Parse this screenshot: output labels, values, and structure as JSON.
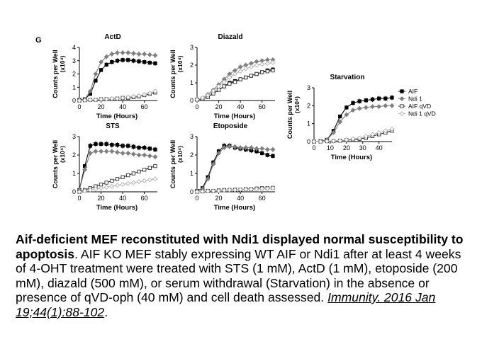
{
  "panel_letter": "G",
  "caption": {
    "bold": "Aif-deficient MEF reconstituted with Ndi1 displayed normal susceptibility to apoptosis",
    "body": ". AIF KO MEF stably expressing WT AIF or Ndi1 after at least 4 weeks of 4-OHT treatment were treated with STS (1 mM), ActD (1 mM), etoposide (200 mM), diazald (500 mM), or serum withdrawal (Starvation) in the absence or presence of qVD-oph (40 mM) and cell death assessed. ",
    "citation": "Immunity. 2016 Jan 19;44(1):88-102",
    "end": "."
  },
  "colors": {
    "AIF": "#000000",
    "Ndi 1": "#7f7f7f",
    "AIF qVD": "#333333",
    "Ndi 1 qVD": "#b0b0b0"
  },
  "chart_data": [
    {
      "type": "line",
      "title": "ActD",
      "xlabel": "Time (Hours)",
      "ylabel": "Counts per Well",
      "yunit": "(x10⁴)",
      "xlim": [
        0,
        72
      ],
      "ylim": [
        0,
        4
      ],
      "xticks": [
        0,
        20,
        40,
        60
      ],
      "yticks": [
        0,
        1,
        2,
        3,
        4
      ],
      "x": [
        0,
        5,
        10,
        15,
        20,
        25,
        30,
        35,
        40,
        45,
        50,
        55,
        60,
        65,
        70
      ],
      "series": [
        {
          "name": "AIF",
          "values": [
            0.05,
            0.1,
            0.5,
            1.5,
            2.3,
            2.7,
            2.9,
            3.0,
            3.05,
            3.05,
            3.0,
            2.95,
            2.9,
            2.85,
            2.8
          ]
        },
        {
          "name": "Ndi 1",
          "values": [
            0.05,
            0.1,
            0.7,
            2.0,
            2.9,
            3.3,
            3.5,
            3.6,
            3.6,
            3.6,
            3.55,
            3.5,
            3.5,
            3.45,
            3.4
          ]
        },
        {
          "name": "AIF qVD",
          "values": [
            0,
            0.02,
            0.05,
            0.05,
            0.1,
            0.1,
            0.1,
            0.15,
            0.2,
            0.2,
            0.25,
            0.3,
            0.4,
            0.5,
            0.6
          ]
        },
        {
          "name": "Ndi 1 qVD",
          "values": [
            0,
            0.02,
            0.05,
            0.05,
            0.1,
            0.1,
            0.15,
            0.15,
            0.2,
            0.25,
            0.3,
            0.35,
            0.45,
            0.55,
            0.7
          ]
        }
      ]
    },
    {
      "type": "line",
      "title": "Diazald",
      "xlabel": "Time (Hours)",
      "ylabel": "Counts per Well",
      "yunit": "(x10⁴)",
      "xlim": [
        0,
        72
      ],
      "ylim": [
        0,
        3
      ],
      "xticks": [
        0,
        20,
        40,
        60
      ],
      "yticks": [
        0,
        1,
        2,
        3
      ],
      "x": [
        0,
        5,
        10,
        15,
        20,
        25,
        30,
        35,
        40,
        45,
        50,
        55,
        60,
        65,
        70
      ],
      "series": [
        {
          "name": "AIF",
          "values": [
            0.05,
            0.1,
            0.2,
            0.4,
            0.6,
            0.8,
            1.0,
            1.1,
            1.2,
            1.3,
            1.4,
            1.5,
            1.6,
            1.7,
            1.75
          ]
        },
        {
          "name": "Ndi 1",
          "values": [
            0.05,
            0.15,
            0.35,
            0.6,
            0.9,
            1.2,
            1.5,
            1.7,
            1.9,
            2.0,
            2.1,
            2.2,
            2.25,
            2.3,
            2.3
          ]
        },
        {
          "name": "AIF qVD",
          "values": [
            0.05,
            0.1,
            0.2,
            0.4,
            0.6,
            0.8,
            0.95,
            1.05,
            1.2,
            1.3,
            1.4,
            1.5,
            1.6,
            1.65,
            1.7
          ]
        },
        {
          "name": "Ndi 1 qVD",
          "values": [
            0.05,
            0.15,
            0.3,
            0.55,
            0.8,
            1.05,
            1.3,
            1.5,
            1.65,
            1.8,
            1.9,
            2.0,
            2.05,
            2.1,
            2.15
          ]
        }
      ]
    },
    {
      "type": "line",
      "title": "STS",
      "xlabel": "Time (Hours)",
      "ylabel": "Counts per Well",
      "yunit": "(x10⁴)",
      "xlim": [
        0,
        72
      ],
      "ylim": [
        0,
        3
      ],
      "xticks": [
        0,
        20,
        40,
        60
      ],
      "yticks": [
        0,
        1,
        2,
        3
      ],
      "x": [
        0,
        5,
        10,
        15,
        20,
        25,
        30,
        35,
        40,
        45,
        50,
        55,
        60,
        65,
        70
      ],
      "series": [
        {
          "name": "AIF",
          "values": [
            0.1,
            1.4,
            2.5,
            2.6,
            2.6,
            2.6,
            2.55,
            2.55,
            2.5,
            2.5,
            2.45,
            2.4,
            2.4,
            2.35,
            2.3
          ]
        },
        {
          "name": "Ndi 1",
          "values": [
            0.1,
            1.2,
            2.1,
            2.2,
            2.2,
            2.2,
            2.2,
            2.15,
            2.1,
            2.1,
            2.05,
            2.0,
            2.0,
            1.95,
            1.9
          ]
        },
        {
          "name": "AIF qVD",
          "values": [
            0,
            0.1,
            0.2,
            0.3,
            0.4,
            0.5,
            0.6,
            0.7,
            0.8,
            0.9,
            1.0,
            1.1,
            1.2,
            1.3,
            1.4
          ]
        },
        {
          "name": "Ndi 1 qVD",
          "values": [
            0,
            0.05,
            0.1,
            0.15,
            0.2,
            0.25,
            0.3,
            0.35,
            0.4,
            0.45,
            0.5,
            0.55,
            0.6,
            0.65,
            0.7
          ]
        }
      ]
    },
    {
      "type": "line",
      "title": "Etoposide",
      "xlabel": "Time (Hours)",
      "ylabel": "Counts per Well",
      "yunit": "(x10⁴)",
      "xlim": [
        0,
        72
      ],
      "ylim": [
        0,
        3
      ],
      "xticks": [
        0,
        20,
        40,
        60
      ],
      "yticks": [
        0,
        1,
        2,
        3
      ],
      "x": [
        0,
        5,
        10,
        15,
        20,
        25,
        30,
        35,
        40,
        45,
        50,
        55,
        60,
        65,
        70
      ],
      "series": [
        {
          "name": "AIF",
          "values": [
            0.05,
            0.2,
            0.8,
            1.6,
            2.2,
            2.5,
            2.5,
            2.4,
            2.35,
            2.3,
            2.25,
            2.2,
            2.1,
            2.0,
            1.95
          ]
        },
        {
          "name": "Ndi 1",
          "values": [
            0.05,
            0.15,
            0.7,
            1.5,
            2.1,
            2.4,
            2.45,
            2.45,
            2.4,
            2.4,
            2.4,
            2.35,
            2.35,
            2.3,
            2.3
          ]
        },
        {
          "name": "AIF qVD",
          "values": [
            0,
            0.02,
            0.05,
            0.05,
            0.08,
            0.1,
            0.1,
            0.12,
            0.12,
            0.15,
            0.15,
            0.18,
            0.2,
            0.2,
            0.22
          ]
        },
        {
          "name": "Ndi 1 qVD",
          "values": [
            0,
            0.02,
            0.04,
            0.05,
            0.06,
            0.08,
            0.1,
            0.1,
            0.12,
            0.13,
            0.14,
            0.15,
            0.17,
            0.18,
            0.2
          ]
        }
      ]
    },
    {
      "type": "line",
      "title": "Starvation",
      "xlabel": "Time (Hours)",
      "ylabel": "Counts per Well",
      "yunit": "(x10⁴)",
      "xlim": [
        0,
        48
      ],
      "ylim": [
        0,
        3
      ],
      "xticks": [
        0,
        10,
        20,
        30,
        40
      ],
      "yticks": [
        0,
        1,
        2,
        3
      ],
      "legend": [
        "AIF",
        "Ndi 1",
        "AIF qVD",
        "Ndi 1 qVD"
      ],
      "x": [
        0,
        4,
        8,
        12,
        16,
        20,
        24,
        28,
        32,
        36,
        40,
        44,
        48
      ],
      "series": [
        {
          "name": "AIF",
          "values": [
            0,
            0.02,
            0.1,
            0.6,
            1.4,
            1.9,
            2.15,
            2.25,
            2.3,
            2.35,
            2.4,
            2.4,
            2.45
          ]
        },
        {
          "name": "Ndi 1",
          "values": [
            0,
            0.02,
            0.1,
            0.5,
            1.1,
            1.5,
            1.75,
            1.85,
            1.9,
            1.95,
            1.95,
            2.0,
            2.0
          ]
        },
        {
          "name": "AIF qVD",
          "values": [
            0,
            0,
            0.02,
            0.03,
            0.05,
            0.08,
            0.1,
            0.15,
            0.2,
            0.3,
            0.4,
            0.5,
            0.6
          ]
        },
        {
          "name": "Ndi 1 qVD",
          "values": [
            0,
            0,
            0.02,
            0.03,
            0.05,
            0.1,
            0.15,
            0.2,
            0.3,
            0.4,
            0.5,
            0.6,
            0.7
          ]
        }
      ]
    }
  ]
}
